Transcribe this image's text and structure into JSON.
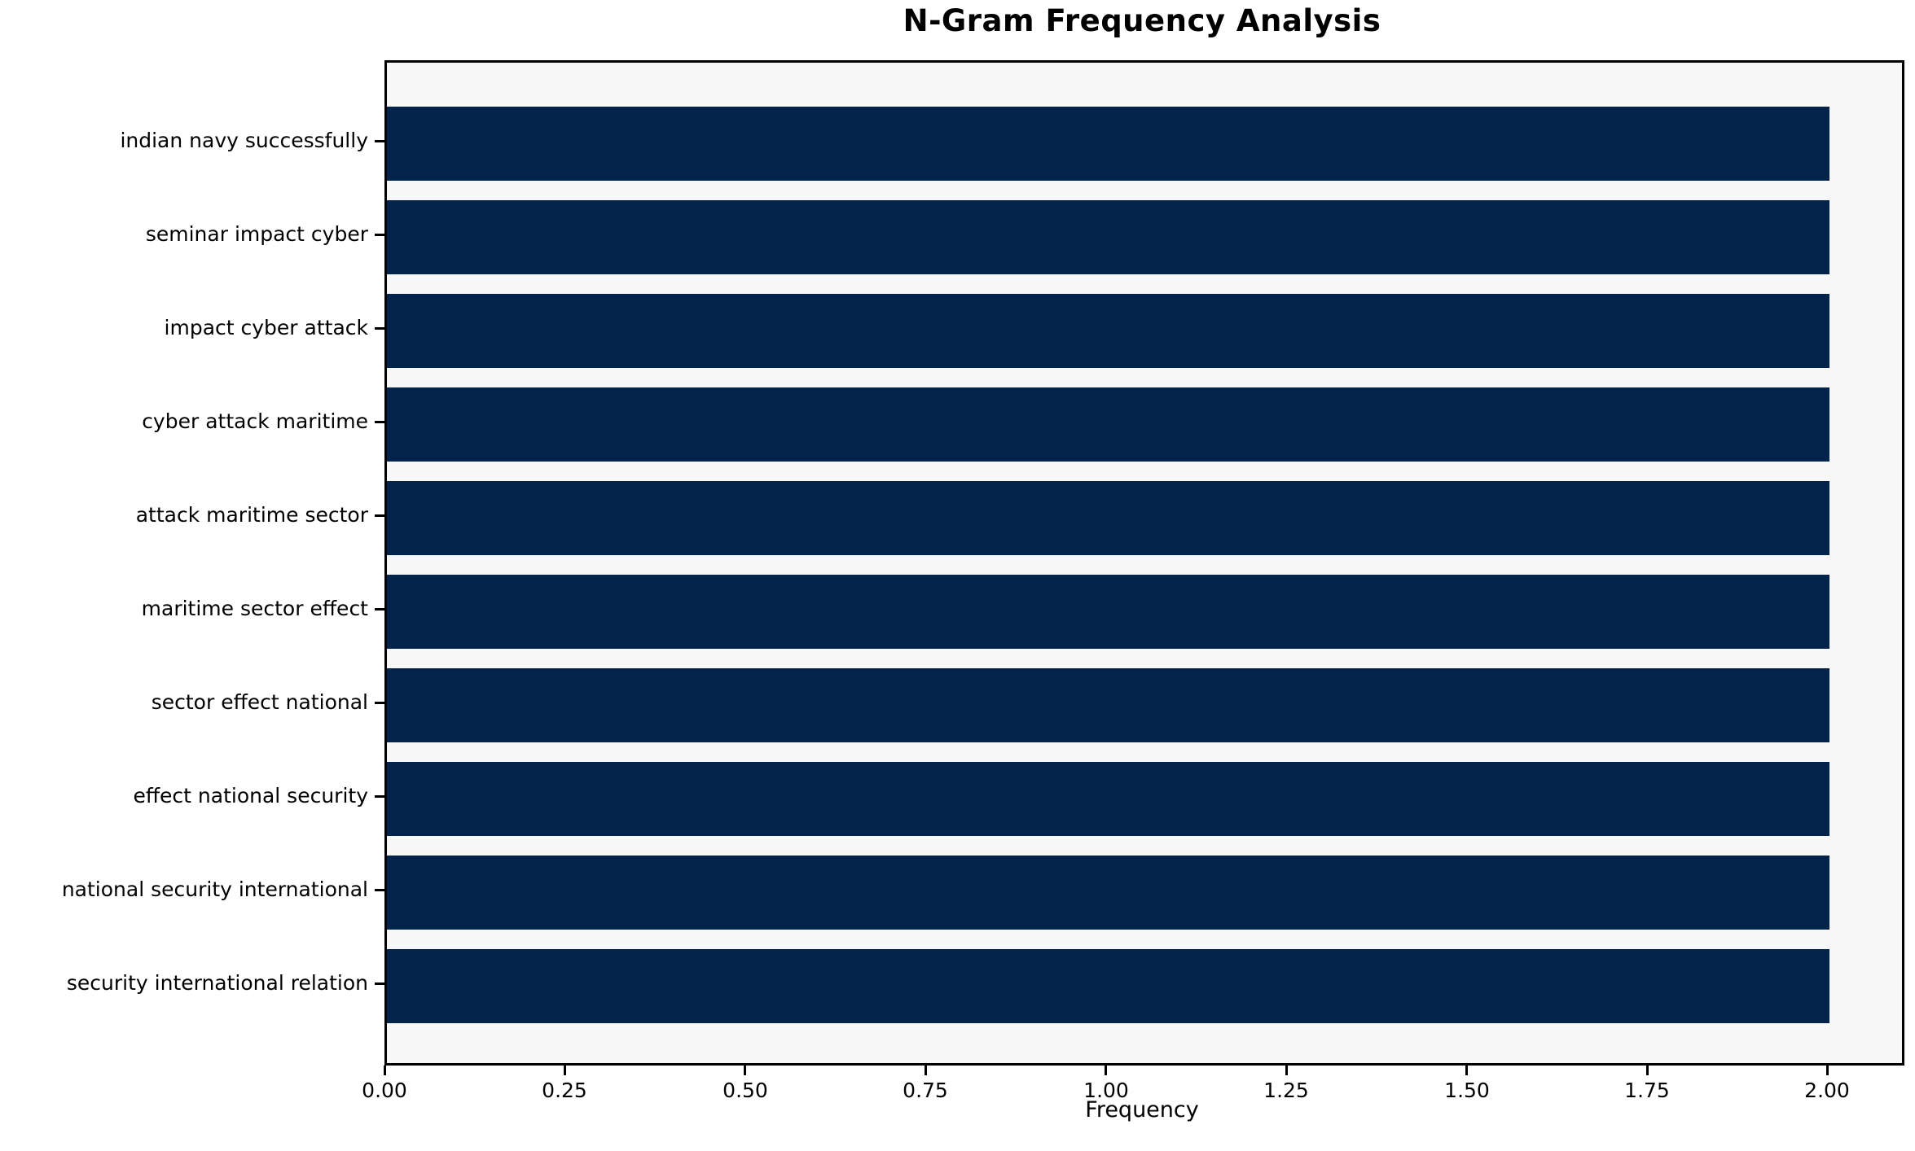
{
  "chart_data": {
    "type": "bar",
    "orientation": "horizontal",
    "title": "N-Gram Frequency Analysis",
    "xlabel": "Frequency",
    "ylabel": "",
    "categories": [
      "indian navy successfully",
      "seminar impact cyber",
      "impact cyber attack",
      "cyber attack maritime",
      "attack maritime sector",
      "maritime sector effect",
      "sector effect national",
      "effect national security",
      "national security international",
      "security international relation"
    ],
    "values": [
      2,
      2,
      2,
      2,
      2,
      2,
      2,
      2,
      2,
      2
    ],
    "xlim": [
      0,
      2.1
    ],
    "xticks": [
      0,
      0.25,
      0.5,
      0.75,
      1.0,
      1.25,
      1.5,
      1.75,
      2.0
    ],
    "xtick_labels": [
      "0.00",
      "0.25",
      "0.50",
      "0.75",
      "1.00",
      "1.25",
      "1.50",
      "1.75",
      "2.00"
    ],
    "grid": false,
    "legend": null,
    "colors": {
      "bar": "#02234a",
      "plot_background": "#f7f7f7",
      "figure_background": "#ffffff",
      "axis": "#000000",
      "text": "#000000"
    }
  }
}
